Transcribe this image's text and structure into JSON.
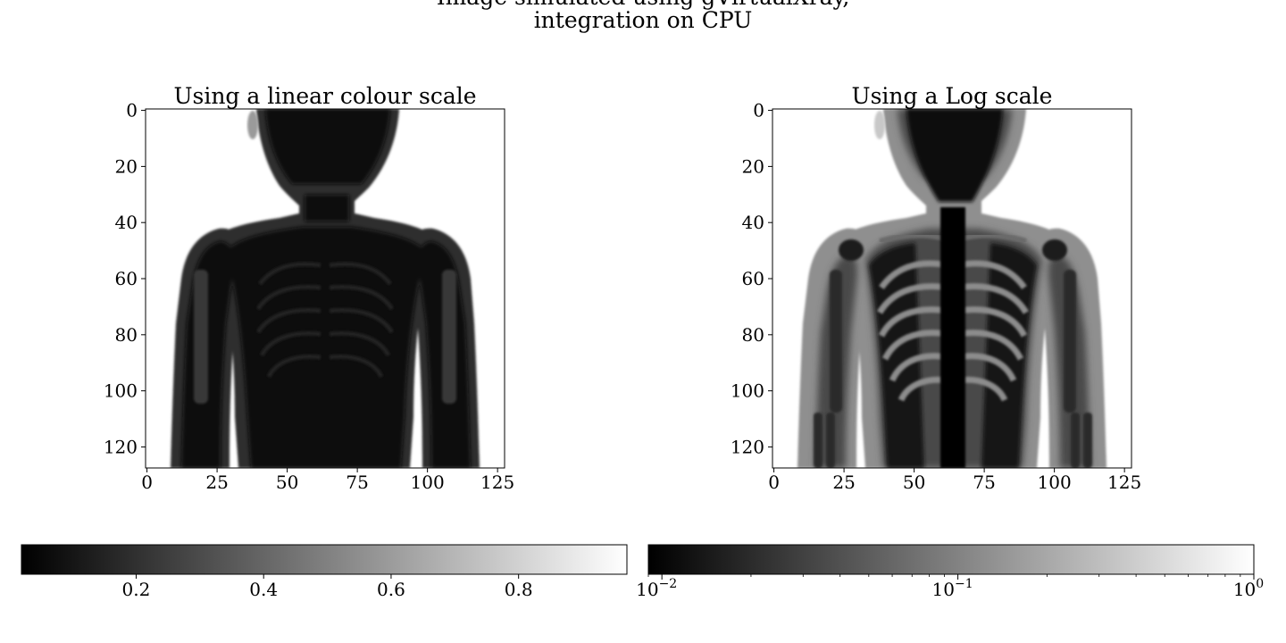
{
  "figure": {
    "title_line1": "Image simulated using gVirtualXray,",
    "title_line2": "integration on CPU"
  },
  "chart_data": [
    {
      "type": "heatmap",
      "title": "Using a linear colour scale",
      "xlabel": "",
      "ylabel": "",
      "xlim": [
        -0.5,
        127.5
      ],
      "ylim": [
        127.5,
        -0.5
      ],
      "x_ticks": [
        0,
        25,
        50,
        75,
        100,
        125
      ],
      "y_ticks": [
        0,
        20,
        40,
        60,
        80,
        100,
        120
      ],
      "colormap": "gray",
      "color_scale": "linear",
      "grid": false,
      "content": "simulated X-ray projection of a child's upper body (head, shoulders, arms, ribcage)"
    },
    {
      "type": "heatmap",
      "title": "Using a Log scale",
      "xlabel": "",
      "ylabel": "",
      "xlim": [
        -0.5,
        127.5
      ],
      "ylim": [
        127.5,
        -0.5
      ],
      "x_ticks": [
        0,
        25,
        50,
        75,
        100,
        125
      ],
      "y_ticks": [
        0,
        20,
        40,
        60,
        80,
        100,
        120
      ],
      "colormap": "gray",
      "color_scale": "log",
      "grid": false,
      "content": "simulated X-ray projection of a child's upper body (head, shoulders, arms, ribcage)"
    }
  ],
  "colorbars": [
    {
      "scale": "linear",
      "range": [
        0.02,
        0.97
      ],
      "ticks": [
        0.2,
        0.4,
        0.6,
        0.8
      ],
      "tick_labels": [
        "0.2",
        "0.4",
        "0.6",
        "0.8"
      ],
      "colormap": "gray"
    },
    {
      "scale": "log",
      "range": [
        0.009,
        1.0
      ],
      "ticks": [
        0.01,
        0.1,
        1
      ],
      "tick_labels": [
        {
          "base": "10",
          "exp": "−2"
        },
        {
          "base": "10",
          "exp": "−1"
        },
        {
          "base": "10",
          "exp": "0"
        }
      ],
      "colormap": "gray"
    }
  ]
}
